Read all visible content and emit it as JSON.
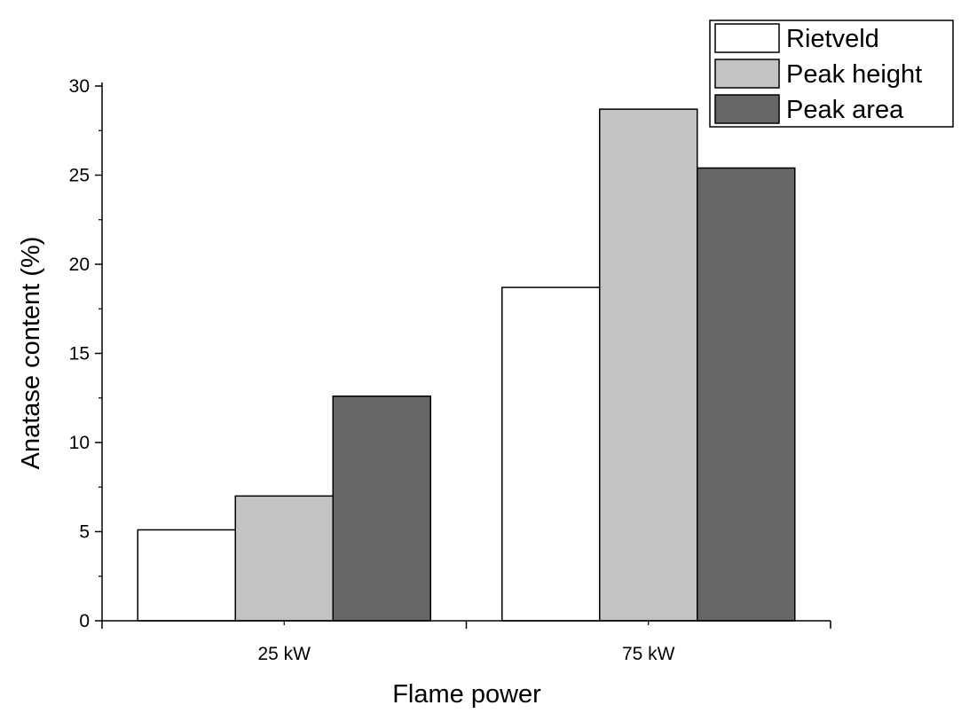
{
  "chart_data": {
    "type": "bar",
    "title": "",
    "xlabel": "Flame power",
    "ylabel": "Anatase content (%)",
    "categories": [
      "25 kW",
      "75 kW"
    ],
    "ylim": [
      0,
      30
    ],
    "yticks": [
      "0",
      "5",
      "10",
      "15",
      "20",
      "25",
      "30"
    ],
    "grid": false,
    "legend_position": "top-right",
    "series": [
      {
        "name": "Rietveld",
        "color": "#ffffff",
        "values": [
          5.1,
          18.7
        ]
      },
      {
        "name": "Peak height",
        "color": "#c3c3c3",
        "values": [
          7.0,
          28.7
        ]
      },
      {
        "name": "Peak area",
        "color": "#666666",
        "values": [
          12.6,
          25.4
        ]
      }
    ]
  }
}
